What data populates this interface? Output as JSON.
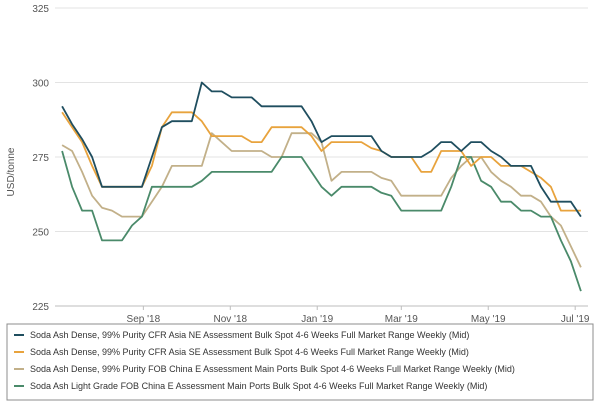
{
  "chart_data": {
    "type": "line",
    "title": "",
    "xlabel": "",
    "ylabel": "USD/tonne",
    "ylim": [
      225,
      325
    ],
    "yticks": [
      225,
      250,
      275,
      300,
      325
    ],
    "grid": "horizontal",
    "legend_placement": "bottom",
    "x_tick_labels": [
      "Sep '18",
      "Nov '18",
      "Jan '19",
      "Mar '19",
      "May '19",
      "Jul '19"
    ],
    "x": [
      "2018-07-06",
      "2018-07-13",
      "2018-07-20",
      "2018-07-27",
      "2018-08-03",
      "2018-08-10",
      "2018-08-17",
      "2018-08-24",
      "2018-08-31",
      "2018-09-07",
      "2018-09-14",
      "2018-09-21",
      "2018-09-28",
      "2018-10-05",
      "2018-10-12",
      "2018-10-19",
      "2018-10-26",
      "2018-11-02",
      "2018-11-09",
      "2018-11-16",
      "2018-11-23",
      "2018-11-30",
      "2018-12-07",
      "2018-12-14",
      "2018-12-21",
      "2018-12-28",
      "2019-01-04",
      "2019-01-11",
      "2019-01-18",
      "2019-01-25",
      "2019-02-01",
      "2019-02-08",
      "2019-02-15",
      "2019-02-22",
      "2019-03-01",
      "2019-03-08",
      "2019-03-15",
      "2019-03-22",
      "2019-03-29",
      "2019-04-05",
      "2019-04-12",
      "2019-04-19",
      "2019-04-26",
      "2019-05-03",
      "2019-05-10",
      "2019-05-17",
      "2019-05-24",
      "2019-05-31",
      "2019-06-07",
      "2019-06-14",
      "2019-06-21",
      "2019-06-28",
      "2019-07-05"
    ],
    "series": [
      {
        "name": "Soda Ash Dense, 99% Purity CFR Asia NE Assessment Bulk Spot 4-6 Weeks Full Market Range Weekly (Mid)",
        "color": "#1f4e5f",
        "values": [
          292,
          286,
          281,
          275,
          265,
          265,
          265,
          265,
          265,
          275,
          285,
          287,
          287,
          287,
          300,
          297,
          297,
          295,
          295,
          295,
          292,
          292,
          292,
          292,
          292,
          287,
          280,
          282,
          282,
          282,
          282,
          282,
          277,
          275,
          275,
          275,
          275,
          277,
          280,
          280,
          277,
          280,
          280,
          277,
          275,
          272,
          272,
          272,
          265,
          260,
          260,
          260,
          255
        ]
      },
      {
        "name": "Soda Ash Dense, 99% Purity CFR Asia SE Assessment Bulk Spot 4-6 Weeks Full Market Range Weekly (Mid)",
        "color": "#e8a33d",
        "values": [
          290,
          285,
          280,
          272,
          265,
          265,
          265,
          265,
          265,
          272,
          285,
          290,
          290,
          290,
          287,
          282,
          282,
          282,
          282,
          280,
          280,
          285,
          285,
          285,
          285,
          282,
          277,
          280,
          280,
          280,
          280,
          278,
          277,
          275,
          275,
          275,
          270,
          270,
          277,
          277,
          277,
          272,
          275,
          275,
          272,
          272,
          272,
          270,
          268,
          265,
          257,
          257,
          257
        ]
      },
      {
        "name": "Soda Ash Dense, 99% Purity FOB China E Assessment Main Ports Bulk Spot 4-6 Weeks Full Market Range Weekly (Mid)",
        "color": "#c2b089",
        "values": [
          279,
          277,
          270,
          262,
          258,
          257,
          255,
          255,
          255,
          260,
          265,
          272,
          272,
          272,
          272,
          283,
          280,
          277,
          277,
          277,
          277,
          275,
          275,
          283,
          283,
          283,
          280,
          267,
          270,
          270,
          270,
          270,
          268,
          267,
          262,
          262,
          262,
          262,
          262,
          268,
          272,
          275,
          275,
          270,
          267,
          265,
          262,
          262,
          260,
          255,
          252,
          245,
          238
        ]
      },
      {
        "name": "Soda Ash Light Grade FOB China E Assessment Main Ports Bulk Spot 4-6 Weeks Full Market Range Weekly (Mid)",
        "color": "#4a8a6a",
        "values": [
          277,
          265,
          257,
          257,
          247,
          247,
          247,
          252,
          255,
          265,
          265,
          265,
          265,
          265,
          267,
          270,
          270,
          270,
          270,
          270,
          270,
          270,
          275,
          275,
          275,
          270,
          265,
          262,
          265,
          265,
          265,
          265,
          263,
          262,
          257,
          257,
          257,
          257,
          257,
          265,
          275,
          275,
          267,
          265,
          260,
          260,
          257,
          257,
          255,
          255,
          247,
          240,
          230
        ]
      }
    ]
  }
}
